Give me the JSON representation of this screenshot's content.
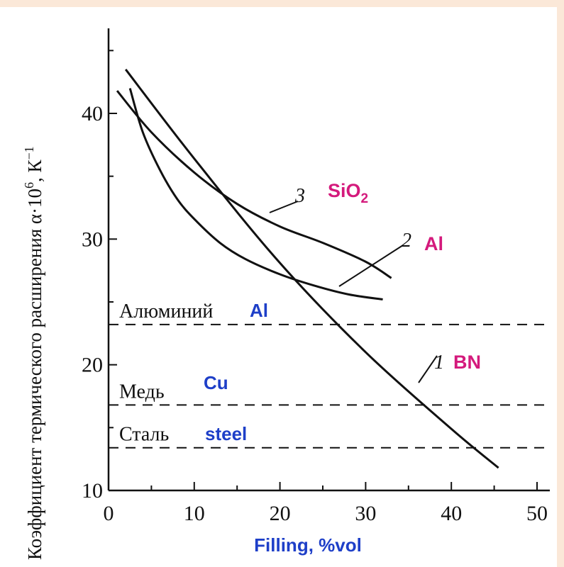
{
  "chart_data": {
    "type": "line",
    "xlabel": "Filling, %vol",
    "ylabel": "Коэффициент термического расширения  α·10",
    "ylabel_sup": "6",
    "ylabel_unit": ", К",
    "ylabel_unit_sup": "−1",
    "xlim": [
      0,
      50
    ],
    "ylim": [
      10,
      45
    ],
    "xticks": [
      0,
      10,
      20,
      30,
      40,
      50
    ],
    "yticks": [
      10,
      20,
      30,
      40
    ],
    "grid": false,
    "series": [
      {
        "name": "BN",
        "number": "1",
        "x": [
          2,
          10,
          20,
          30,
          40,
          45.5
        ],
        "y": [
          43.5,
          36.4,
          28.1,
          21.0,
          14.9,
          11.8
        ]
      },
      {
        "name": "Al",
        "number": "2",
        "x": [
          2.5,
          4,
          6,
          8,
          10,
          13,
          16,
          20,
          24,
          28,
          32
        ],
        "y": [
          42,
          38.5,
          35.5,
          33.2,
          31.6,
          29.7,
          28.4,
          27.2,
          26.3,
          25.6,
          25.2
        ]
      },
      {
        "name": "SiO",
        "name_sub": "2",
        "number": "3",
        "x": [
          1,
          5,
          10,
          15,
          20,
          25,
          30,
          33
        ],
        "y": [
          41.8,
          38.5,
          35.3,
          32.8,
          31.0,
          29.7,
          28.2,
          26.9
        ]
      }
    ],
    "reference_lines": [
      {
        "label_ru": "Алюминий",
        "label_en": "Al",
        "y": 23.2
      },
      {
        "label_ru": "Медь",
        "label_en": "Cu",
        "y": 16.8
      },
      {
        "label_ru": "Сталь",
        "label_en": "steel",
        "y": 13.4
      }
    ]
  },
  "colors": {
    "accent_magenta": "#d41a7c",
    "accent_blue": "#1e3fc8",
    "ink": "#111111",
    "frame": "#fbe8d8"
  }
}
